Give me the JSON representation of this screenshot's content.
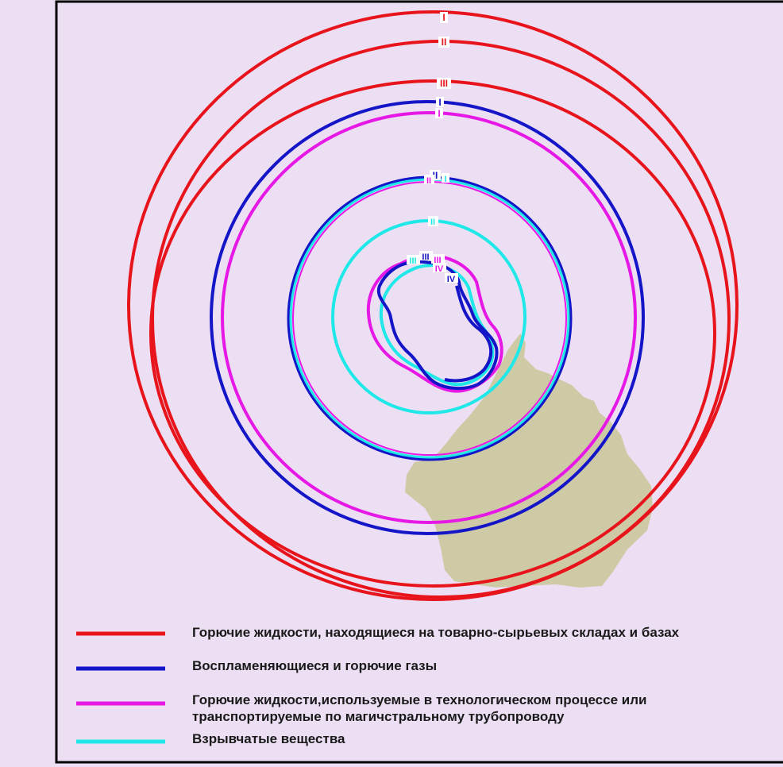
{
  "colors": {
    "background": "#ecdff4",
    "land": "#cfcaa6",
    "flammable_liquids_storage": "#e8141c",
    "flammable_gases": "#1515c8",
    "flammable_liquids_process": "#e618e6",
    "explosives": "#20e8e8",
    "frame": "#000000"
  },
  "zone_labels": {
    "red_1": "I",
    "red_2": "II",
    "red_3": "III",
    "blue_1": "I",
    "blue_2": "II",
    "blue_3": "III",
    "blue_4": "IV",
    "magenta_1": "I",
    "magenta_2": "II",
    "magenta_3": "III",
    "magenta_4": "IV",
    "cyan_1": "I",
    "cyan_2": "II",
    "cyan_3": "III"
  },
  "legend": [
    {
      "color_key": "flammable_liquids_storage",
      "text": "Горючие жидкости, находящиеся на товарно-сырьевых складах и базах"
    },
    {
      "color_key": "flammable_gases",
      "text": "Воспламеняющиеся и горючие газы"
    },
    {
      "color_key": "flammable_liquids_process",
      "text": "Горючие жидкости,используемые в технологическом процессе или транспортируемые по магичстральному трубопроводу"
    },
    {
      "color_key": "explosives",
      "text": "Взрывчатые вещества"
    }
  ]
}
